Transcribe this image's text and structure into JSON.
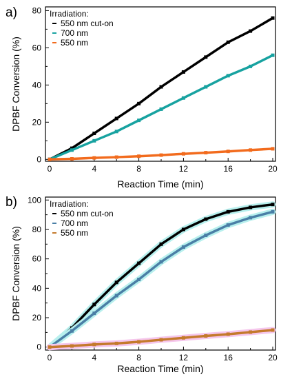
{
  "chart_data": [
    {
      "type": "line",
      "panel_label": "a)",
      "legend_title": "Irradiation:",
      "legend_placement": "top-left",
      "xlabel": "Reaction Time (min)",
      "ylabel": "DPBF Conversion (%)",
      "xlim": [
        0,
        20
      ],
      "ylim": [
        -1,
        82
      ],
      "xticks": [
        "0",
        "4",
        "8",
        "12",
        "16",
        "20"
      ],
      "yticks": [
        "0",
        "20",
        "40",
        "60",
        "80"
      ],
      "grid": false,
      "x": [
        0,
        2,
        4,
        6,
        8,
        10,
        12,
        14,
        16,
        18,
        20
      ],
      "series": [
        {
          "name": "550 nm cut-on",
          "color": "#000000",
          "values": [
            0,
            6,
            14,
            22,
            30,
            39,
            47,
            55,
            63,
            69,
            76
          ]
        },
        {
          "name": "700 nm",
          "color": "#17a2a0",
          "values": [
            0,
            5,
            10,
            15,
            21,
            27,
            33,
            39,
            45,
            50,
            56
          ]
        },
        {
          "name": "550 nm",
          "color": "#f26b1d",
          "values": [
            0,
            0.3,
            0.8,
            1.2,
            1.7,
            2.3,
            3,
            3.6,
            4.3,
            5,
            5.7
          ]
        }
      ]
    },
    {
      "type": "line",
      "panel_label": "b)",
      "legend_title": "Irradiation:",
      "legend_placement": "top-left",
      "xlabel": "Reaction Time (min)",
      "ylabel": "DPBF Conversion (%)",
      "xlim": [
        0,
        20
      ],
      "ylim": [
        -2,
        102
      ],
      "xticks": [
        "0",
        "4",
        "8",
        "12",
        "16",
        "20"
      ],
      "yticks": [
        "0",
        "20",
        "40",
        "60",
        "80",
        "100"
      ],
      "grid": false,
      "x": [
        0,
        2,
        4,
        6,
        8,
        10,
        12,
        14,
        16,
        18,
        20
      ],
      "series": [
        {
          "name": "550 nm cut-on",
          "color": "#000000",
          "halo": "#b8f0ee",
          "values": [
            0,
            13,
            29,
            44,
            57,
            70,
            80,
            87,
            92,
            95,
            97
          ]
        },
        {
          "name": "700 nm",
          "color": "#4a7fa6",
          "halo": "#b8f0ee",
          "values": [
            0,
            11,
            23,
            35,
            46,
            58,
            68,
            76,
            83,
            88,
            92
          ]
        },
        {
          "name": "550 nm",
          "color": "#c47a2c",
          "halo": "#f5c6ec",
          "values": [
            0,
            0.8,
            1.8,
            2.5,
            3.6,
            5,
            6.3,
            7.6,
            8.8,
            10.2,
            11.6
          ]
        }
      ]
    }
  ]
}
